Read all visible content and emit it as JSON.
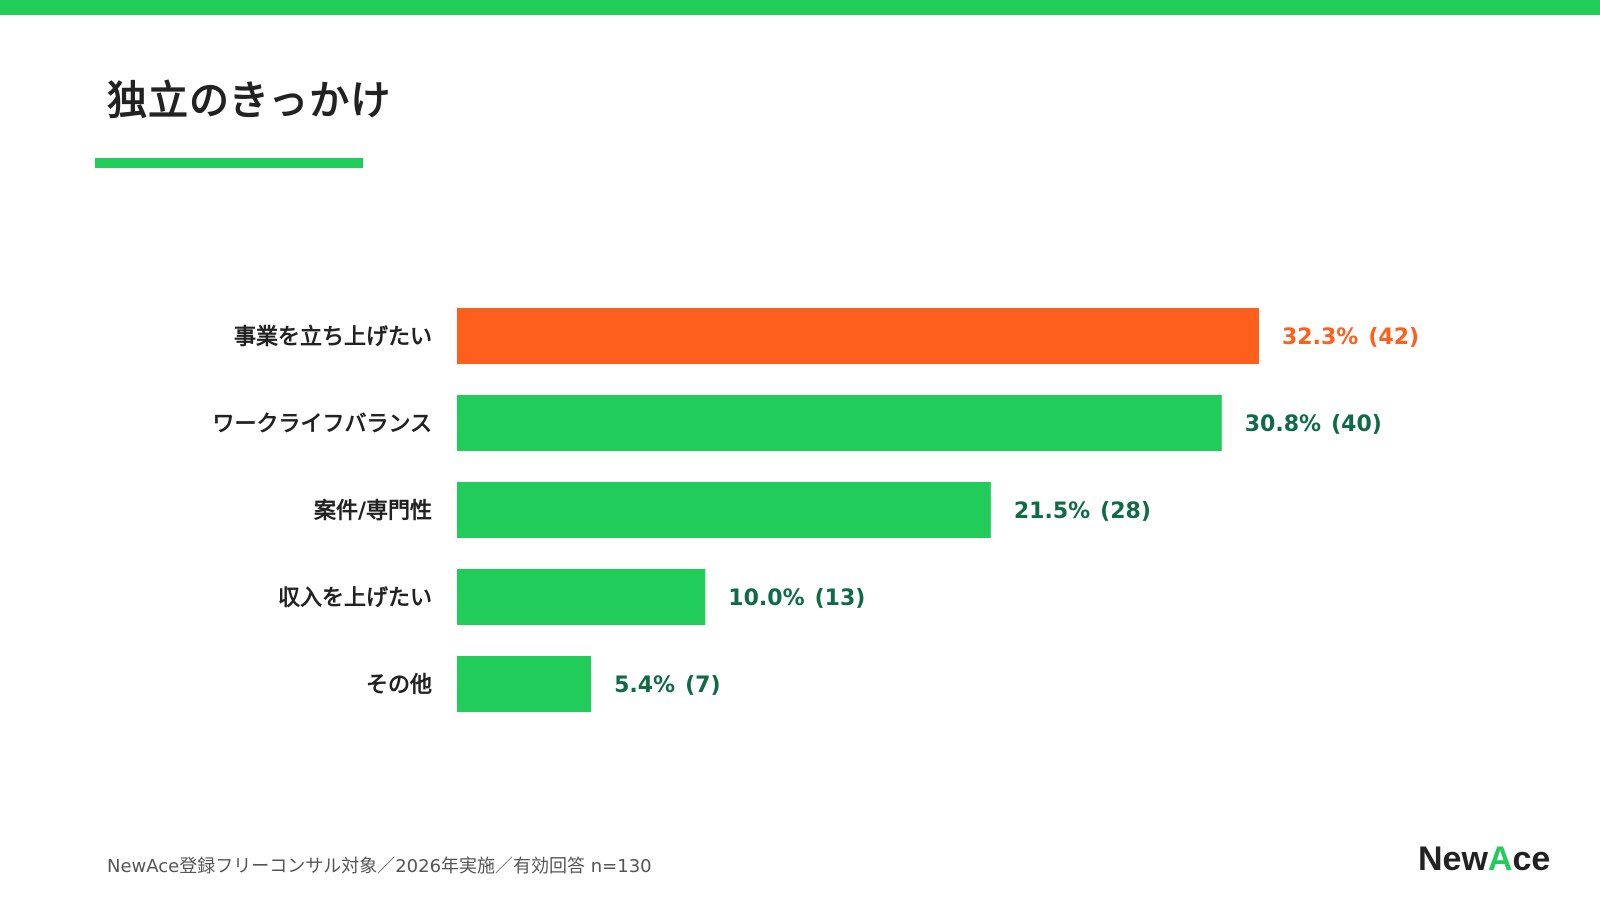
{
  "header": {
    "title": "独立のきっかけ",
    "accent_color": "#22cc5b"
  },
  "chart_data": {
    "type": "bar",
    "orientation": "horizontal",
    "title": "独立のきっかけ",
    "categories": [
      "事業を立ち上げたい",
      "ワークライフバランス",
      "案件/専門性",
      "収入を上げたい",
      "その他"
    ],
    "values": [
      32.3,
      30.8,
      21.5,
      10.0,
      5.4
    ],
    "counts": [
      42,
      40,
      28,
      13,
      7
    ],
    "value_labels": [
      "32.3%",
      "30.8%",
      "21.5%",
      "10.0%",
      "5.4%"
    ],
    "count_labels": [
      "(42)",
      "(40)",
      "(28)",
      "(13)",
      "(7)"
    ],
    "highlight_index": 0,
    "colors": {
      "highlight_bar": "#ff5f1c",
      "bar": "#22cc5b",
      "highlight_label": "#ff5f1c",
      "label": "#0f6b45",
      "category_label": "#222222"
    },
    "grid": false,
    "legend": "none"
  },
  "footer": {
    "note": "NewAce登録フリーコンサル対象／2026年実施／有効回答 n=130",
    "logo": {
      "left_text": "New",
      "accent_text": "A",
      "right_text": "ce",
      "accent_color": "#22cc5b"
    }
  }
}
